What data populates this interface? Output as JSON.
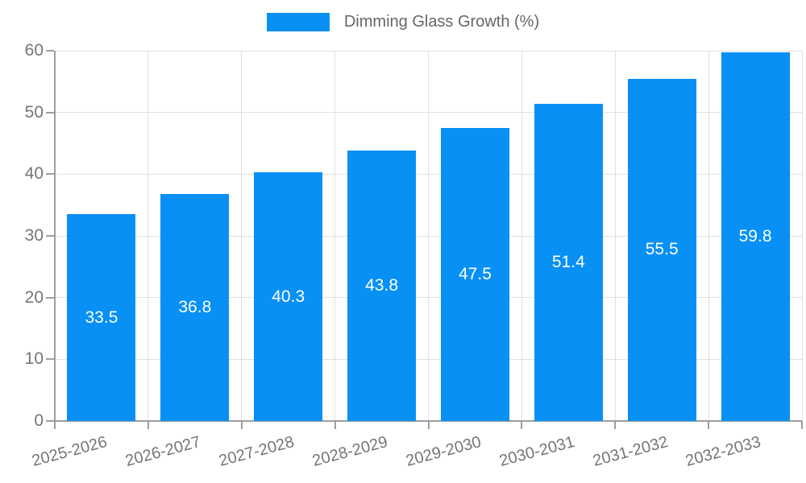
{
  "chart_data": {
    "type": "bar",
    "title": "",
    "legend_label": "Dimming Glass Growth (%)",
    "legend_position": "top-center",
    "categories": [
      "2025-2026",
      "2026-2027",
      "2027-2028",
      "2028-2029",
      "2029-2030",
      "2030-2031",
      "2031-2032",
      "2032-2033"
    ],
    "series": [
      {
        "name": "Dimming Glass Growth (%)",
        "values": [
          33.5,
          36.8,
          40.3,
          43.8,
          47.5,
          51.4,
          55.5,
          59.8
        ]
      }
    ],
    "value_labels_shown": true,
    "xlabel": "",
    "ylabel": "",
    "ylim": [
      0,
      60
    ],
    "yticks": [
      0,
      10,
      20,
      30,
      40,
      50,
      60
    ],
    "grid": "both",
    "x_label_rotation_deg": -15,
    "colors": {
      "bar": "#0890f5",
      "gridline": "#e0e0e0",
      "axis_line": "#9e9e9e",
      "axis_text": "#757575",
      "legend_text": "#666666",
      "value_label_text": "#ffffff",
      "background": "#ffffff"
    }
  }
}
